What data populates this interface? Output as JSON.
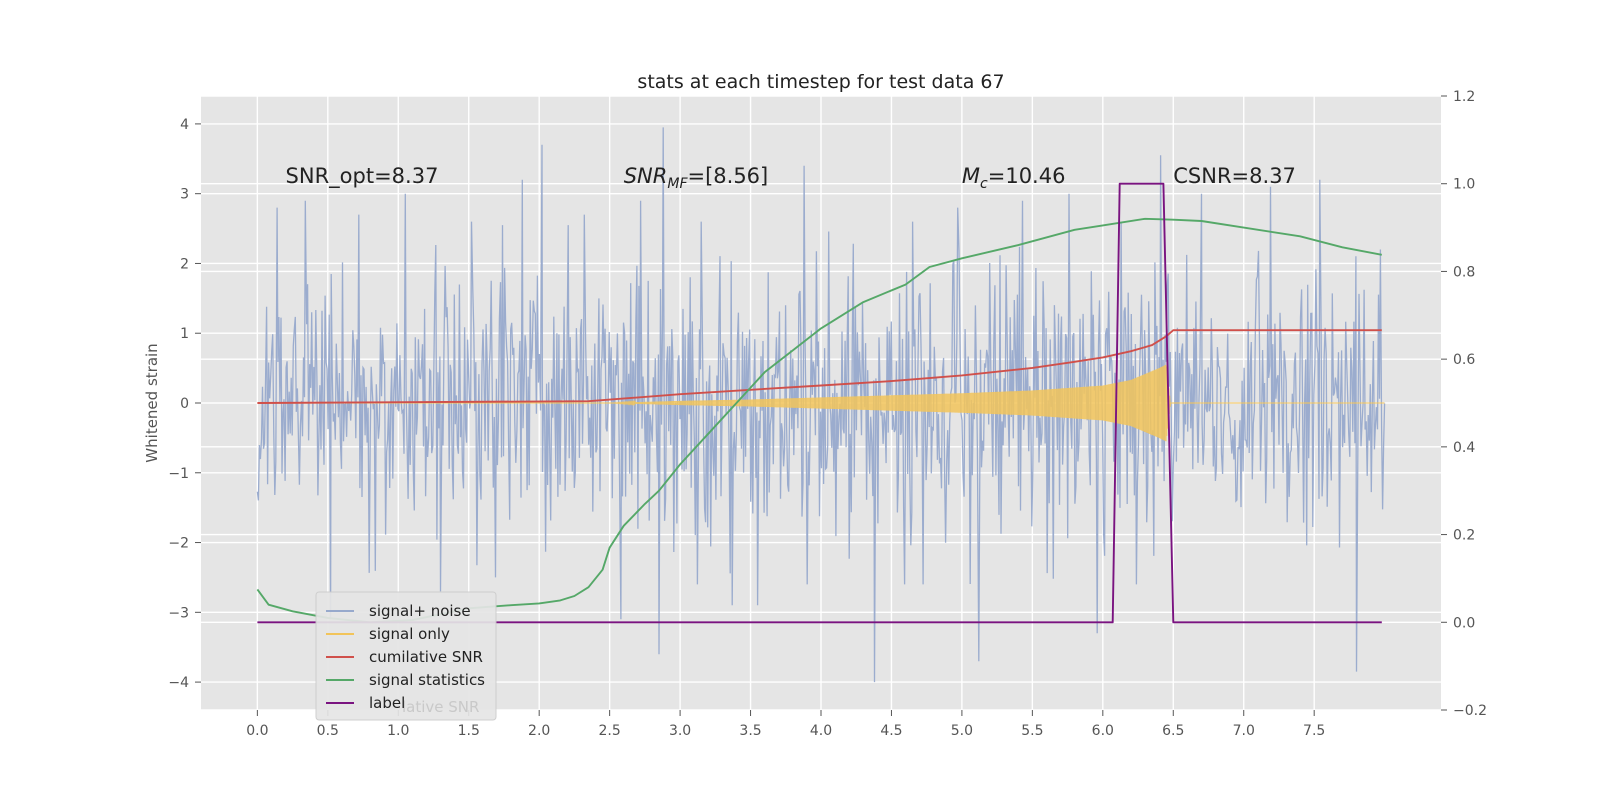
{
  "chart_data": {
    "type": "line",
    "title": "stats at each timestep for test data 67",
    "ylabel": "Whitened strain",
    "xlim": [
      -0.4,
      8.4
    ],
    "ylim": [
      -4.4,
      4.4
    ],
    "y2lim": [
      -0.2,
      1.2
    ],
    "grid": true,
    "x_ticks": [
      0.0,
      0.5,
      1.0,
      1.5,
      2.0,
      2.5,
      3.0,
      3.5,
      4.0,
      4.5,
      5.0,
      5.5,
      6.0,
      6.5,
      7.0,
      7.5
    ],
    "x_tick_labels": [
      "0.0",
      "0.5",
      "1.0",
      "1.5",
      "2.0",
      "2.5",
      "3.0",
      "3.5",
      "4.0",
      "4.5",
      "5.0",
      "5.5",
      "6.0",
      "6.5",
      "7.0",
      "7.5"
    ],
    "y_ticks": [
      -4,
      -3,
      -2,
      -1,
      0,
      1,
      2,
      3,
      4
    ],
    "y_tick_labels": [
      "−4",
      "−3",
      "−2",
      "−1",
      "0",
      "1",
      "2",
      "3",
      "4"
    ],
    "y2_ticks": [
      -0.2,
      0.0,
      0.2,
      0.4,
      0.6,
      0.8,
      1.0,
      1.2
    ],
    "y2_tick_labels": [
      "−0.2",
      "0.0",
      "0.2",
      "0.4",
      "0.6",
      "0.8",
      "1.0",
      "1.2"
    ],
    "annotations": [
      {
        "key": "snr_opt",
        "text": "SNR_opt=8.37",
        "x": 0.2,
        "y": 3.15
      },
      {
        "key": "snr_mf",
        "text": "SNR_MF=[8.56]",
        "x": 2.6,
        "y": 3.15
      },
      {
        "key": "mc",
        "text": "M_c=10.46",
        "x": 5.0,
        "y": 3.15
      },
      {
        "key": "csnr",
        "text": "CSNR=8.37",
        "x": 6.5,
        "y": 3.15
      }
    ],
    "legend": {
      "position": "lower-left",
      "entries": [
        {
          "label": "signal+ noise",
          "color": "#97a9cc"
        },
        {
          "label": "signal only",
          "color": "#f2c45a"
        },
        {
          "label": "cumilative SNR",
          "color": "#d0504b"
        },
        {
          "label": "signal statistics",
          "color": "#55a868"
        },
        {
          "label": "label",
          "color": "#7a1380"
        }
      ],
      "hidden_partial_text": "lative SNR"
    },
    "series": [
      {
        "name": "signal+ noise",
        "axis": "left",
        "color": "#97a9cc",
        "x_start": 0.0,
        "x_end": 8.0,
        "sample_count": 1100,
        "noise_std": 1.0,
        "peaks": [
          {
            "x": 0.14,
            "y": 2.8
          },
          {
            "x": 0.34,
            "y": 2.9
          },
          {
            "x": 0.52,
            "y": -3.1
          },
          {
            "x": 0.72,
            "y": 2.7
          },
          {
            "x": 1.05,
            "y": 3.0
          },
          {
            "x": 1.3,
            "y": -2.7
          },
          {
            "x": 1.52,
            "y": 2.6
          },
          {
            "x": 1.69,
            "y": -2.5
          },
          {
            "x": 1.88,
            "y": 3.2
          },
          {
            "x": 2.02,
            "y": 3.7
          },
          {
            "x": 2.32,
            "y": 2.7
          },
          {
            "x": 2.58,
            "y": -3.1
          },
          {
            "x": 2.72,
            "y": 2.9
          },
          {
            "x": 2.85,
            "y": -3.6
          },
          {
            "x": 2.88,
            "y": 3.95
          },
          {
            "x": 3.15,
            "y": 2.6
          },
          {
            "x": 3.37,
            "y": -2.9
          },
          {
            "x": 3.55,
            "y": -2.9
          },
          {
            "x": 3.88,
            "y": 3.4
          },
          {
            "x": 4.38,
            "y": -4.0
          },
          {
            "x": 4.65,
            "y": 2.6
          },
          {
            "x": 4.97,
            "y": 2.8
          },
          {
            "x": 5.12,
            "y": -3.7
          },
          {
            "x": 5.43,
            "y": 2.9
          },
          {
            "x": 5.76,
            "y": 3.0
          },
          {
            "x": 5.96,
            "y": -3.3
          },
          {
            "x": 6.13,
            "y": 2.6
          },
          {
            "x": 6.41,
            "y": 3.55
          },
          {
            "x": 6.7,
            "y": 3.0
          },
          {
            "x": 7.19,
            "y": 3.1
          },
          {
            "x": 7.54,
            "y": 3.2
          },
          {
            "x": 7.8,
            "y": -3.85
          },
          {
            "x": 7.97,
            "y": 2.2
          }
        ]
      },
      {
        "name": "signal only",
        "axis": "left",
        "color": "#f2c45a",
        "x_start": 2.5,
        "x_end": 6.5,
        "envelope": [
          [
            2.5,
            0.0
          ],
          [
            3.0,
            0.03
          ],
          [
            3.5,
            0.05
          ],
          [
            4.0,
            0.08
          ],
          [
            4.5,
            0.11
          ],
          [
            5.0,
            0.14
          ],
          [
            5.5,
            0.18
          ],
          [
            6.0,
            0.25
          ],
          [
            6.2,
            0.33
          ],
          [
            6.4,
            0.5
          ],
          [
            6.45,
            0.55
          ],
          [
            6.48,
            0.0
          ]
        ]
      },
      {
        "name": "cumilative SNR",
        "axis": "right",
        "color": "#d0504b",
        "points": [
          [
            0.0,
            0.5
          ],
          [
            2.35,
            0.504
          ],
          [
            3.0,
            0.52
          ],
          [
            3.5,
            0.53
          ],
          [
            4.0,
            0.54
          ],
          [
            4.5,
            0.55
          ],
          [
            5.0,
            0.563
          ],
          [
            5.5,
            0.58
          ],
          [
            5.8,
            0.594
          ],
          [
            6.0,
            0.604
          ],
          [
            6.2,
            0.618
          ],
          [
            6.35,
            0.632
          ],
          [
            6.45,
            0.652
          ],
          [
            6.5,
            0.666
          ],
          [
            7.98,
            0.666
          ]
        ]
      },
      {
        "name": "signal statistics",
        "axis": "right",
        "color": "#55a868",
        "points": [
          [
            0.0,
            0.075
          ],
          [
            0.08,
            0.04
          ],
          [
            0.25,
            0.025
          ],
          [
            0.5,
            0.01
          ],
          [
            0.8,
            0.0
          ],
          [
            1.1,
            0.005
          ],
          [
            1.5,
            0.032
          ],
          [
            1.8,
            0.039
          ],
          [
            2.0,
            0.043
          ],
          [
            2.15,
            0.05
          ],
          [
            2.25,
            0.06
          ],
          [
            2.35,
            0.08
          ],
          [
            2.45,
            0.12
          ],
          [
            2.5,
            0.17
          ],
          [
            2.6,
            0.22
          ],
          [
            2.75,
            0.27
          ],
          [
            2.85,
            0.3
          ],
          [
            3.0,
            0.36
          ],
          [
            3.2,
            0.43
          ],
          [
            3.4,
            0.5
          ],
          [
            3.6,
            0.57
          ],
          [
            3.8,
            0.62
          ],
          [
            4.0,
            0.67
          ],
          [
            4.3,
            0.73
          ],
          [
            4.6,
            0.77
          ],
          [
            4.77,
            0.81
          ],
          [
            5.0,
            0.83
          ],
          [
            5.4,
            0.86
          ],
          [
            5.8,
            0.895
          ],
          [
            6.0,
            0.905
          ],
          [
            6.3,
            0.92
          ],
          [
            6.5,
            0.918
          ],
          [
            6.7,
            0.915
          ],
          [
            7.0,
            0.9
          ],
          [
            7.4,
            0.88
          ],
          [
            7.7,
            0.855
          ],
          [
            7.98,
            0.838
          ]
        ]
      },
      {
        "name": "label",
        "axis": "right",
        "color": "#7a1380",
        "points": [
          [
            0.0,
            0.0
          ],
          [
            6.07,
            0.0
          ],
          [
            6.12,
            1.0
          ],
          [
            6.43,
            1.0
          ],
          [
            6.5,
            0.0
          ],
          [
            7.98,
            0.0
          ]
        ]
      }
    ]
  }
}
